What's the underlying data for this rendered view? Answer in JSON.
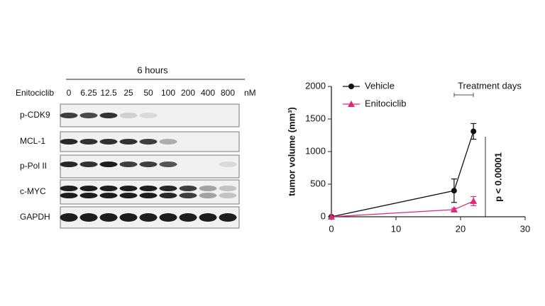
{
  "blot": {
    "time_label": "6 hours",
    "drug_label": "Enitociclib",
    "doses": [
      "0",
      "6.25",
      "12.5",
      "25",
      "50",
      "100",
      "200",
      "400",
      "800"
    ],
    "dose_unit": "nM",
    "rows": [
      "p-CDK9",
      "MCL-1",
      "p-Pol II",
      "c-MYC",
      "GAPDH"
    ]
  },
  "chart_data": {
    "type": "line",
    "ylabel": "tumor volume (mm³)",
    "x": [
      0,
      19,
      22
    ],
    "series": [
      {
        "name": "Vehicle",
        "color": "#111111",
        "marker": "circle",
        "values": [
          0,
          400,
          1310
        ],
        "errors": [
          0,
          180,
          120
        ]
      },
      {
        "name": "Enitociclib",
        "color": "#e0287a",
        "marker": "triangle",
        "values": [
          0,
          110,
          240
        ],
        "errors": [
          0,
          20,
          70
        ]
      }
    ],
    "xlim": [
      0,
      30
    ],
    "xticks": [
      0,
      10,
      20,
      30
    ],
    "ylim": [
      0,
      2000
    ],
    "yticks": [
      0,
      500,
      1000,
      1500,
      2000
    ],
    "annotations": [
      "Treatment days",
      "p < 0.00001"
    ]
  }
}
